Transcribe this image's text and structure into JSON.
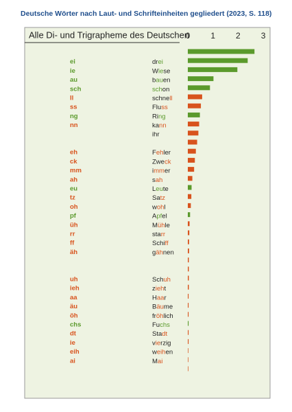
{
  "chart_data": {
    "type": "bar",
    "orientation": "horizontal",
    "title": "Deutsche Wörter nach Laut- und Schrifteinheiten gegliedert (2023, S. 118)",
    "subtitle": "Alle Di- und Trigrapheme des Deutschen",
    "categories": [
      null,
      "ei",
      "ie",
      "au",
      "sch",
      "ll",
      "ss",
      "ng",
      "nn",
      null,
      null,
      "eh",
      "ck",
      "mm",
      "ah",
      "eu",
      "tz",
      "oh",
      "pf",
      "üh",
      "rr",
      "ff",
      "äh",
      null,
      null,
      "uh",
      "ieh",
      "aa",
      "äu",
      "öh",
      "chs",
      "dt",
      "ie",
      "eih",
      "ai",
      null
    ],
    "words": [
      null,
      "drei",
      "Wiese",
      "bauen",
      "schon",
      "schnell",
      "Fluss",
      "Ring",
      "kann",
      "ihr",
      null,
      "Fehler",
      "Zweck",
      "immer",
      "sah",
      "Leute",
      "Satz",
      "wohl",
      "Apfel",
      "Mühle",
      "starr",
      "Schiff",
      "gähnen",
      null,
      null,
      "Schuh",
      "zieht",
      "Haar",
      "Bäume",
      "fröhlich",
      "Fuchs",
      "Stadt",
      "vierzig",
      "weihen",
      "Mai",
      null
    ],
    "values": [
      2.65,
      2.38,
      1.97,
      1.02,
      0.88,
      0.57,
      0.52,
      0.48,
      0.45,
      0.42,
      0.37,
      0.32,
      0.28,
      0.25,
      0.18,
      0.15,
      0.14,
      0.12,
      0.09,
      0.07,
      0.06,
      0.05,
      0.05,
      0.04,
      0.04,
      0.04,
      0.04,
      0.03,
      0.03,
      0.03,
      0.03,
      0.03,
      0.03,
      0.02,
      0.02,
      0.02
    ],
    "colors": [
      "#5b9a2c",
      "#5b9a2c",
      "#5b9a2c",
      "#5b9a2c",
      "#5b9a2c",
      "#d8531d",
      "#d8531d",
      "#5b9a2c",
      "#d8531d",
      "#d8531d",
      "#d8531d",
      "#d8531d",
      "#d8531d",
      "#d8531d",
      "#d8531d",
      "#5b9a2c",
      "#d8531d",
      "#d8531d",
      "#5b9a2c",
      "#d8531d",
      "#d8531d",
      "#d8531d",
      "#d8531d",
      "#d8531d",
      "#d8531d",
      "#d8531d",
      "#d8531d",
      "#d8531d",
      "#d8531d",
      "#d8531d",
      "#5b9a2c",
      "#d8531d",
      "#d8531d",
      "#d8531d",
      "#d8531d",
      "#d8531d"
    ],
    "xlim": [
      0,
      3.2
    ],
    "xticks": [
      0,
      1,
      2,
      3
    ]
  }
}
